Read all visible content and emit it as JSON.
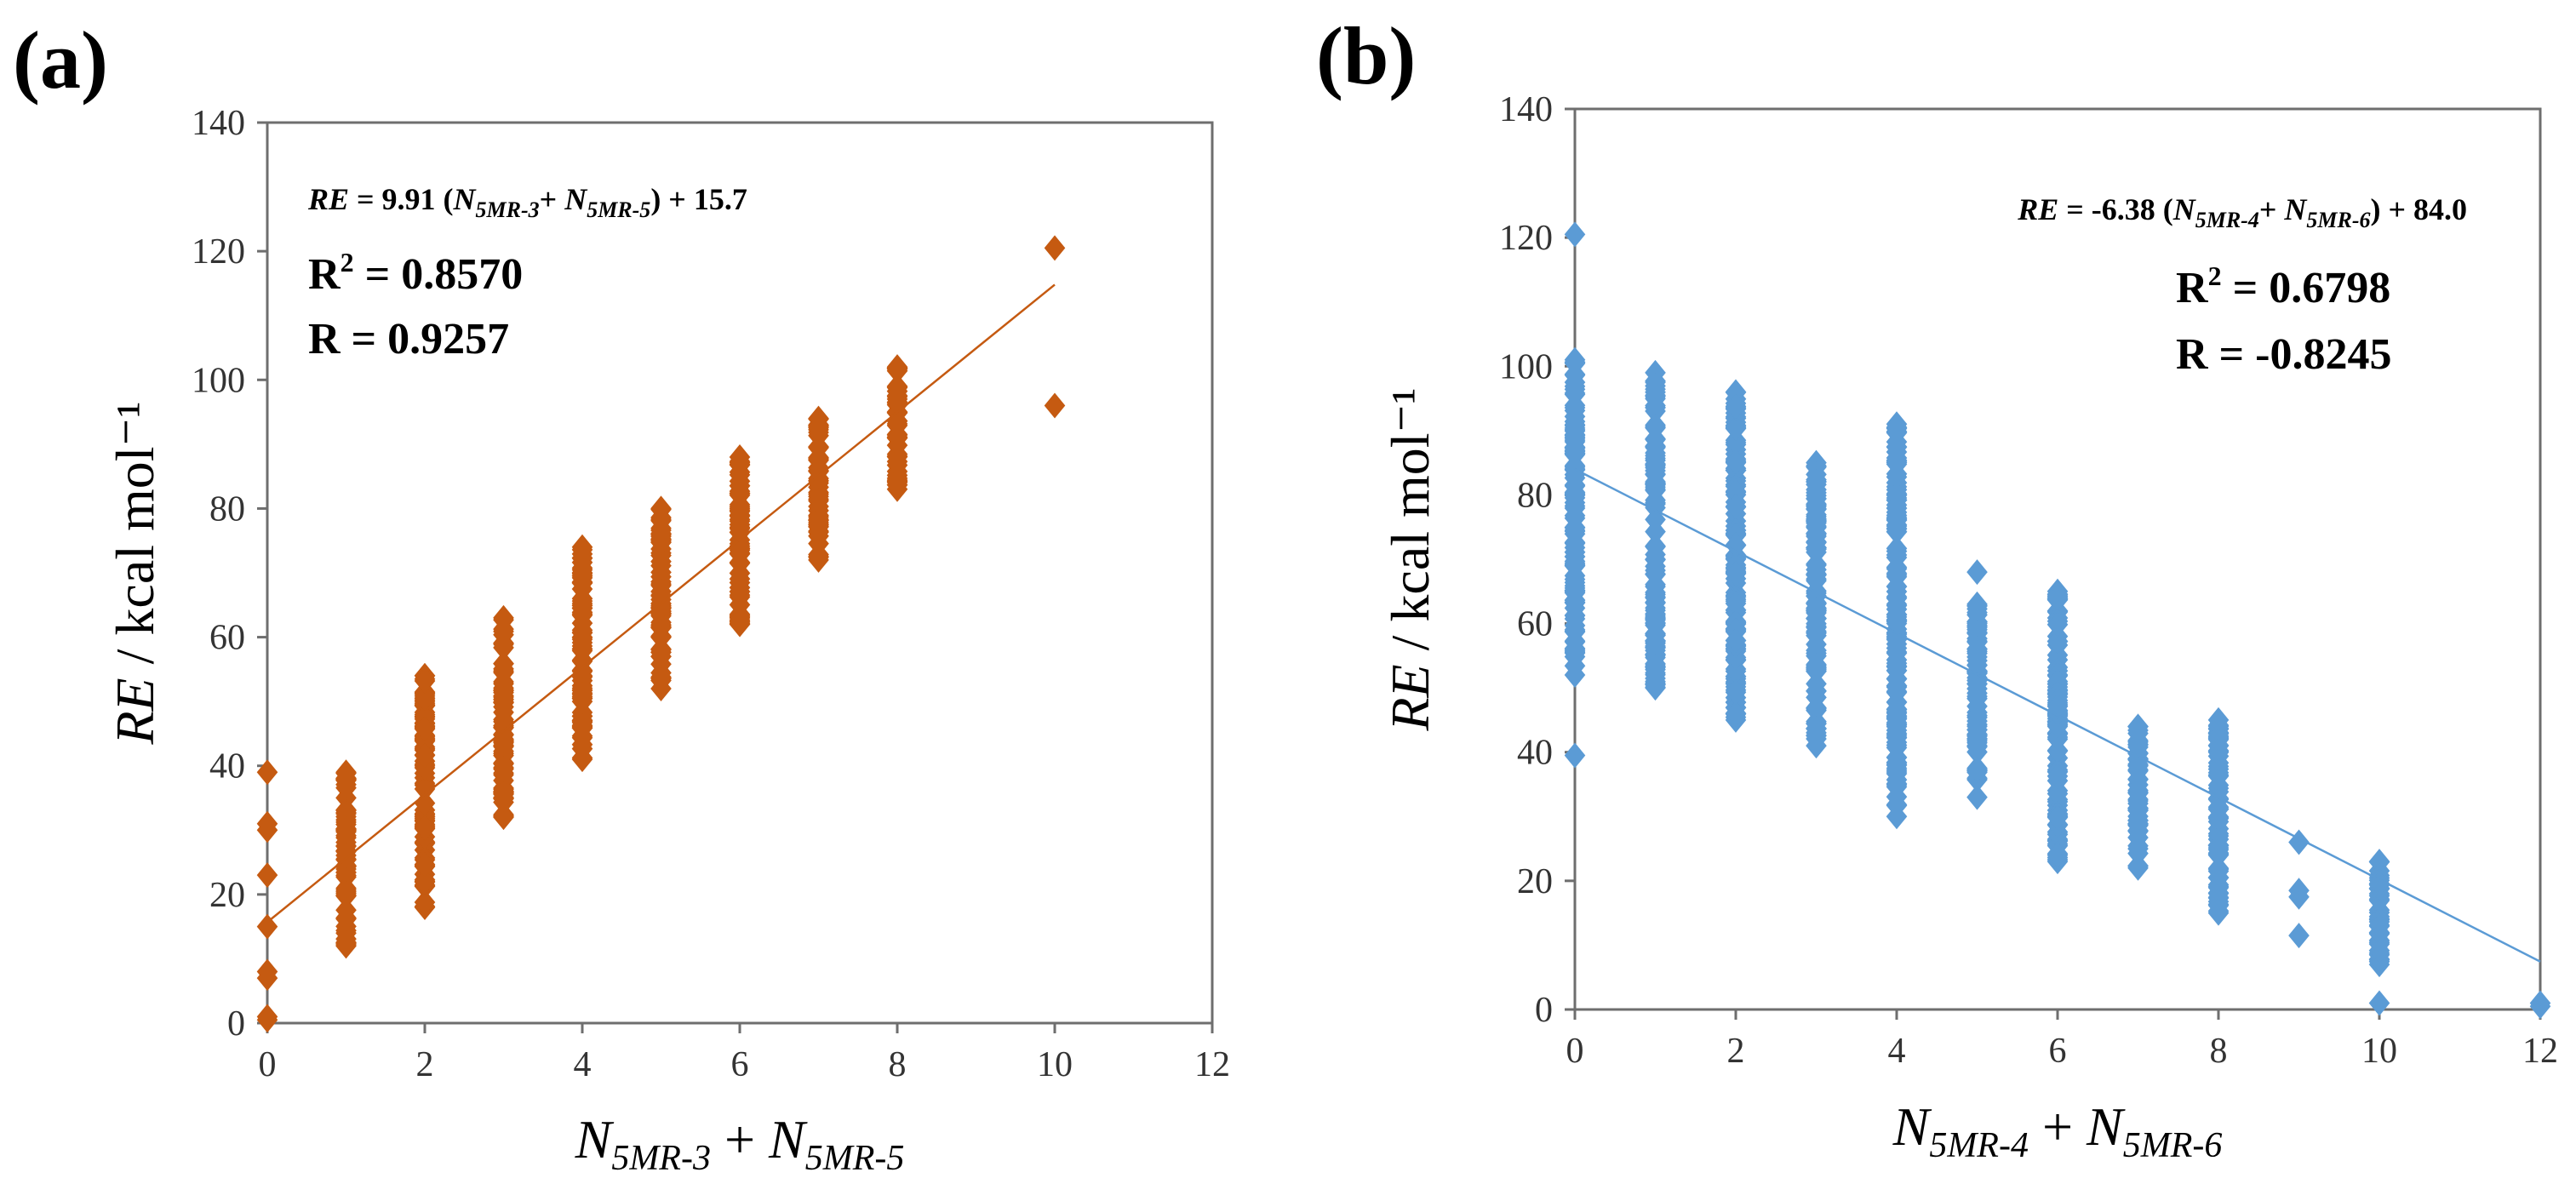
{
  "colors": {
    "panel_a": "#C55A11",
    "panel_b": "#5B9BD5",
    "text": "#000000",
    "axis": "#333333"
  },
  "chart_data": [
    {
      "panel_label": "(a)",
      "type": "scatter",
      "color": "#C55A11",
      "xlim": [
        0,
        12
      ],
      "ylim": [
        0,
        140
      ],
      "xticks": [
        "0",
        "2",
        "4",
        "6",
        "8",
        "10",
        "12"
      ],
      "yticks": [
        "0",
        "20",
        "40",
        "60",
        "80",
        "100",
        "120",
        "140"
      ],
      "ylabel_italic": "RE",
      "ylabel_rest": " / kcal mol⁻¹",
      "xlabel_n1": "N",
      "xlabel_s1": "5MR-3",
      "xlabel_plus": " + ",
      "xlabel_n2": "N",
      "xlabel_s2": "5MR-5",
      "equation": {
        "lhs": "RE",
        "mid1": " = 9.91 (",
        "n1": "N",
        "s1": "5MR-3",
        "plus": "+ ",
        "n2": "N",
        "s2": "5MR-5",
        "tail": ") + 15.7"
      },
      "r2_label": "R",
      "r2_sup": "2",
      "r2_value": " = 0.8570",
      "r_text": "R = 0.9257",
      "fit": {
        "slope": 9.91,
        "intercept": 15.7,
        "x_range": [
          0,
          10
        ]
      },
      "columns": [
        {
          "x": 0,
          "lo": 0,
          "hi": 0,
          "extra": [
            0.5,
            1,
            7,
            8,
            15,
            23,
            30,
            31,
            39
          ]
        },
        {
          "x": 1,
          "lo": 12,
          "hi": 39,
          "extra": []
        },
        {
          "x": 2,
          "lo": 18,
          "hi": 54,
          "extra": []
        },
        {
          "x": 3,
          "lo": 32,
          "hi": 63,
          "extra": []
        },
        {
          "x": 4,
          "lo": 41,
          "hi": 74,
          "extra": []
        },
        {
          "x": 5,
          "lo": 52,
          "hi": 80,
          "extra": []
        },
        {
          "x": 6,
          "lo": 62,
          "hi": 88,
          "extra": []
        },
        {
          "x": 7,
          "lo": 72,
          "hi": 94,
          "extra": []
        },
        {
          "x": 8,
          "lo": 83,
          "hi": 102,
          "extra": []
        },
        {
          "x": 10,
          "lo": 0,
          "hi": 0,
          "extra": [
            96,
            120.5
          ]
        }
      ]
    },
    {
      "panel_label": "(b)",
      "type": "scatter",
      "color": "#5B9BD5",
      "xlim": [
        0,
        12
      ],
      "ylim": [
        0,
        140
      ],
      "xticks": [
        "0",
        "2",
        "4",
        "6",
        "8",
        "10",
        "12"
      ],
      "yticks": [
        "0",
        "20",
        "40",
        "60",
        "80",
        "100",
        "120",
        "140"
      ],
      "ylabel_italic": "RE",
      "ylabel_rest": " / kcal mol⁻¹",
      "xlabel_n1": "N",
      "xlabel_s1": "5MR-4",
      "xlabel_plus": " + ",
      "xlabel_n2": "N",
      "xlabel_s2": "5MR-6",
      "equation": {
        "lhs": "RE",
        "mid1": " = -6.38 (",
        "n1": "N",
        "s1": "5MR-4",
        "plus": "+ ",
        "n2": "N",
        "s2": "5MR-6",
        "tail": ") + 84.0"
      },
      "r2_label": "R",
      "r2_sup": "2",
      "r2_value": " = 0.6798",
      "r_text": "R = -0.8245",
      "fit": {
        "slope": -6.38,
        "intercept": 84.0,
        "x_range": [
          0,
          12
        ]
      },
      "columns": [
        {
          "x": 0,
          "lo": 52,
          "hi": 101,
          "extra": [
            39.5,
            120.5
          ]
        },
        {
          "x": 1,
          "lo": 50,
          "hi": 99,
          "extra": []
        },
        {
          "x": 2,
          "lo": 45,
          "hi": 96,
          "extra": []
        },
        {
          "x": 3,
          "lo": 41,
          "hi": 85,
          "extra": []
        },
        {
          "x": 4,
          "lo": 30,
          "hi": 91,
          "extra": []
        },
        {
          "x": 5,
          "lo": 33,
          "hi": 63,
          "extra": [
            68
          ]
        },
        {
          "x": 6,
          "lo": 23,
          "hi": 65,
          "extra": []
        },
        {
          "x": 7,
          "lo": 22,
          "hi": 44,
          "extra": []
        },
        {
          "x": 8,
          "lo": 15,
          "hi": 45,
          "extra": []
        },
        {
          "x": 9,
          "lo": 0,
          "hi": 0,
          "extra": [
            11.5,
            17.5,
            18.5,
            26
          ]
        },
        {
          "x": 10,
          "lo": 7,
          "hi": 23,
          "extra": [
            1
          ]
        },
        {
          "x": 12,
          "lo": 0,
          "hi": 0,
          "extra": [
            0.5,
            1
          ]
        }
      ]
    }
  ]
}
